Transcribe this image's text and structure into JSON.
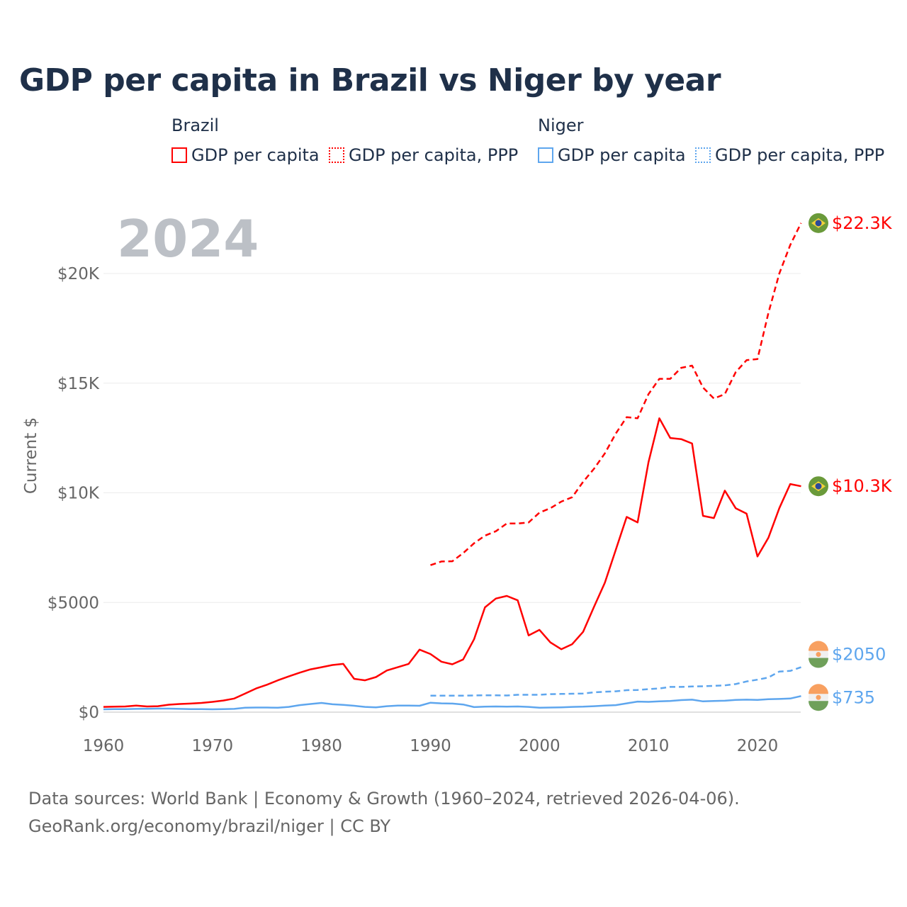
{
  "title": "GDP per capita in Brazil vs Niger by year",
  "legend": {
    "groups": [
      {
        "name": "Brazil",
        "items": [
          "GDP per capita",
          "GDP per capita, PPP"
        ],
        "color": "#ff0000"
      },
      {
        "name": "Niger",
        "items": [
          "GDP per capita",
          "GDP per capita, PPP"
        ],
        "color": "#5ea6ee"
      }
    ]
  },
  "year_label": "2024",
  "footer": {
    "line1": "Data sources: World Bank | Economy & Growth (1960–2024, retrieved 2026-04-06).",
    "line2": "GeoRank.org/economy/brazil/niger | CC BY"
  },
  "chart_data": {
    "type": "line",
    "title": "GDP per capita in Brazil vs Niger by year",
    "xlabel": "",
    "ylabel": "Current $",
    "xlim": [
      1960,
      2024
    ],
    "ylim": [
      0,
      22500
    ],
    "x_ticks": [
      1960,
      1970,
      1980,
      1990,
      2000,
      2010,
      2020
    ],
    "x_tick_labels": [
      "1960",
      "1970",
      "1980",
      "1990",
      "2000",
      "2010",
      "2020"
    ],
    "y_ticks": [
      0,
      5000,
      10000,
      15000,
      20000
    ],
    "y_tick_labels": [
      "$0",
      "$5000",
      "$10K",
      "$15K",
      "$20K"
    ],
    "grid": true,
    "series": [
      {
        "name": "Brazil GDP per capita",
        "color": "#ff0000",
        "dash": false,
        "end_label": "$10.3K",
        "start": 1960,
        "values": [
          240,
          250,
          260,
          300,
          260,
          270,
          340,
          370,
          390,
          420,
          470,
          530,
          620,
          850,
          1080,
          1250,
          1450,
          1630,
          1800,
          1950,
          2050,
          2150,
          2200,
          1520,
          1450,
          1600,
          1900,
          2050,
          2200,
          2850,
          2650,
          2300,
          2180,
          2400,
          3320,
          4780,
          5180,
          5300,
          5100,
          3500,
          3750,
          3180,
          2870,
          3100,
          3660,
          4800,
          5900,
          7400,
          8900,
          8650,
          11400,
          13400,
          12500,
          12450,
          12250,
          8950,
          8850,
          10100,
          9300,
          9050,
          7100,
          7950,
          9300,
          10400,
          10300
        ]
      },
      {
        "name": "Brazil GDP per capita, PPP",
        "color": "#ff0000",
        "dash": true,
        "end_label": "$22.3K",
        "start": 1990,
        "values": [
          6700,
          6870,
          6880,
          7250,
          7700,
          8050,
          8250,
          8600,
          8600,
          8650,
          9100,
          9300,
          9600,
          9800,
          10500,
          11100,
          11800,
          12700,
          13450,
          13400,
          14500,
          15200,
          15200,
          15700,
          15800,
          14800,
          14300,
          14500,
          15500,
          16050,
          16100,
          18200,
          20000,
          21300,
          22300
        ]
      },
      {
        "name": "Niger GDP per capita",
        "color": "#5ea6ee",
        "dash": false,
        "end_label": "$735",
        "start": 1960,
        "values": [
          130,
          135,
          140,
          150,
          155,
          160,
          160,
          150,
          140,
          135,
          130,
          140,
          150,
          200,
          210,
          210,
          200,
          240,
          320,
          370,
          420,
          360,
          330,
          290,
          240,
          220,
          270,
          300,
          300,
          290,
          430,
          400,
          390,
          350,
          230,
          250,
          260,
          250,
          260,
          240,
          200,
          210,
          220,
          240,
          250,
          270,
          300,
          320,
          400,
          480,
          470,
          490,
          510,
          550,
          570,
          490,
          510,
          520,
          560,
          570,
          560,
          590,
          600,
          620,
          735
        ]
      },
      {
        "name": "Niger GDP per capita, PPP",
        "color": "#5ea6ee",
        "dash": true,
        "end_label": "$2050",
        "start": 1990,
        "values": [
          750,
          750,
          750,
          750,
          760,
          770,
          770,
          760,
          790,
          790,
          790,
          820,
          830,
          840,
          850,
          900,
          930,
          950,
          1000,
          1010,
          1050,
          1080,
          1150,
          1150,
          1170,
          1180,
          1200,
          1220,
          1280,
          1400,
          1480,
          1580,
          1850,
          1880,
          2050
        ]
      }
    ]
  }
}
